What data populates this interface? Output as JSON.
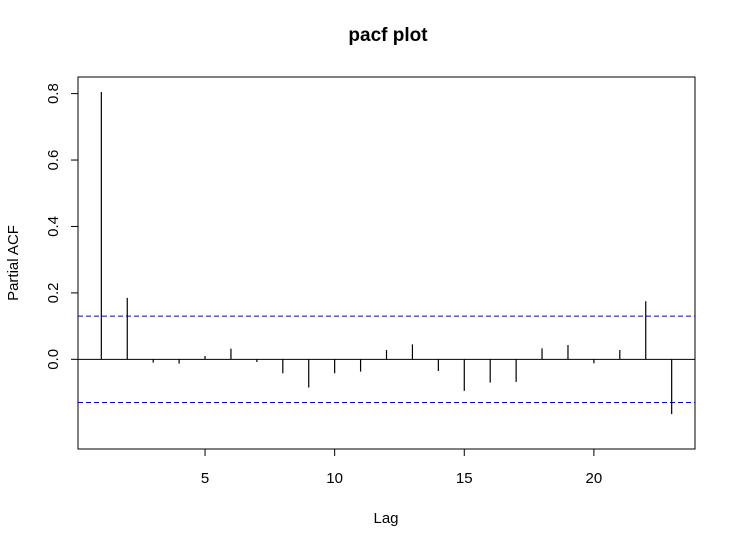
{
  "chart_data": {
    "type": "bar",
    "title": "pacf plot",
    "xlabel": "Lag",
    "ylabel": "Partial ACF",
    "xlim": [
      0.1,
      23.9
    ],
    "ylim": [
      -0.27,
      0.85
    ],
    "xticks": [
      5,
      10,
      15,
      20
    ],
    "yticks": [
      0.0,
      0.2,
      0.4,
      0.6,
      0.8
    ],
    "ytick_labels": [
      "0.0",
      "0.2",
      "0.4",
      "0.6",
      "0.8"
    ],
    "zero_line": true,
    "confidence_bounds": [
      0.13,
      -0.13
    ],
    "confidence_color": "#0000cc",
    "bar_color": "#000000",
    "grid": false,
    "x": [
      1,
      2,
      3,
      4,
      5,
      6,
      7,
      8,
      9,
      10,
      11,
      12,
      13,
      14,
      15,
      16,
      17,
      18,
      19,
      20,
      21,
      22,
      23
    ],
    "values": [
      0.805,
      0.185,
      -0.01,
      -0.013,
      0.01,
      0.032,
      -0.008,
      -0.042,
      -0.085,
      -0.042,
      -0.037,
      0.028,
      0.045,
      -0.035,
      -0.095,
      -0.07,
      -0.068,
      0.033,
      0.043,
      -0.012,
      0.028,
      0.175,
      -0.165
    ]
  }
}
